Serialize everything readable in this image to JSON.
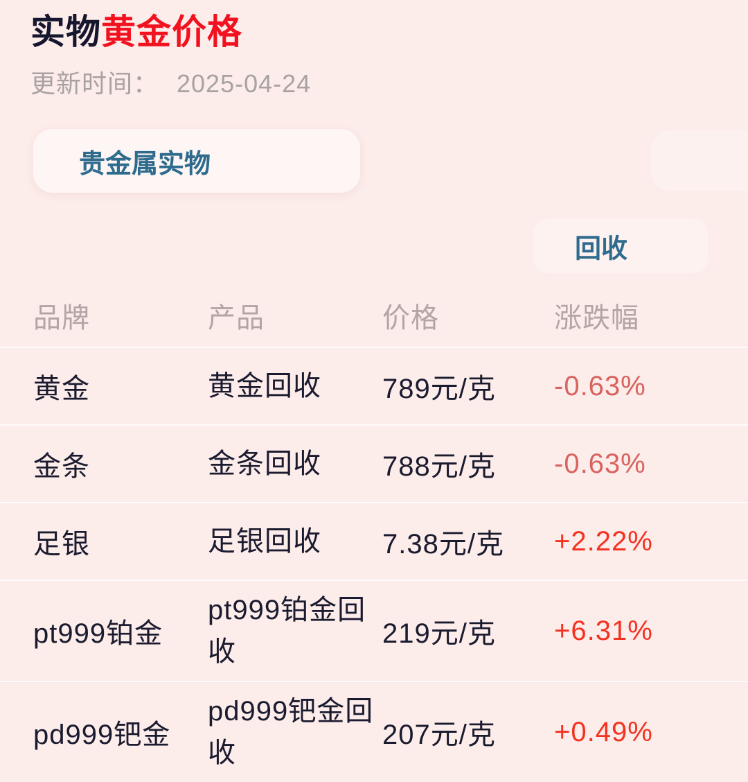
{
  "header": {
    "title_prefix": "实物",
    "title_highlight": "黄金价格",
    "update_label": "更新时间：",
    "update_date": "2025-04-24"
  },
  "tabs": {
    "active_label": "贵金属实物"
  },
  "mode": {
    "label": "回收"
  },
  "table": {
    "headers": [
      "品牌",
      "产品",
      "价格",
      "涨跌幅"
    ],
    "rows": [
      {
        "brand": "黄金",
        "product": "黄金回收",
        "price": "789元/克",
        "change": "-0.63%",
        "direction": "down"
      },
      {
        "brand": "金条",
        "product": "金条回收",
        "price": "788元/克",
        "change": "-0.63%",
        "direction": "down"
      },
      {
        "brand": "足银",
        "product": "足银回收",
        "price": "7.38元/克",
        "change": "+2.22%",
        "direction": "up"
      },
      {
        "brand": "pt999铂金",
        "product": "pt999铂金回收",
        "price": "219元/克",
        "change": "+6.31%",
        "direction": "up"
      },
      {
        "brand": "pd999钯金",
        "product": "pd999钯金回收",
        "price": "207元/克",
        "change": "+0.49%",
        "direction": "up"
      }
    ]
  },
  "colors": {
    "background": "#fcecea",
    "title_dark": "#16162e",
    "title_red": "#f2121f",
    "subtitle_gray": "#a9a2a2",
    "accent_teal": "#2e6b8d",
    "header_gray": "#b5a4a6",
    "body_dark": "#1b1b2f",
    "change_down": "#d9635e",
    "change_up": "#f43221"
  }
}
